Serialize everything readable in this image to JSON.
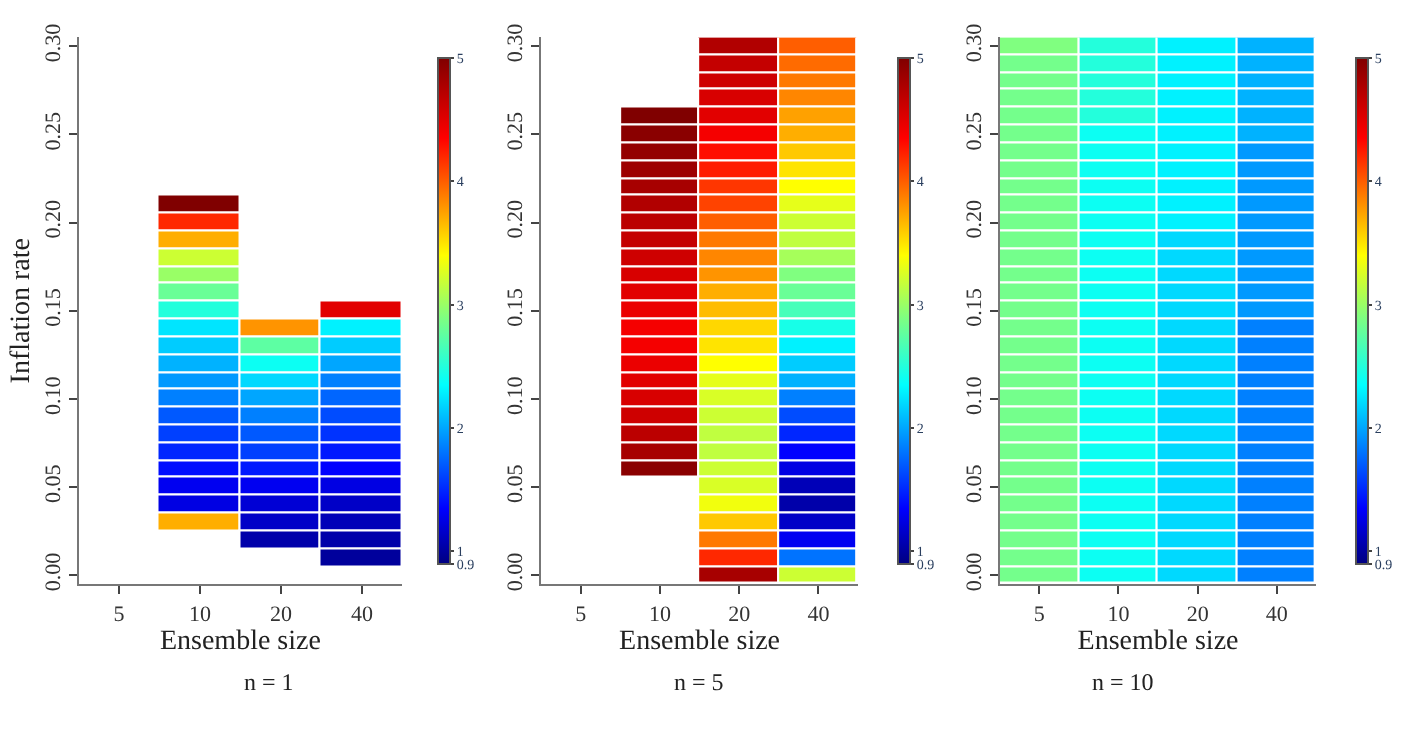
{
  "chart_data": [
    {
      "type": "heatmap",
      "xlabel": "Ensemble size",
      "ylabel": "Inflation rate",
      "annotations": [
        "n = 1"
      ],
      "categories": [
        "5",
        "10",
        "20",
        "40"
      ],
      "y": [
        0.21,
        0.2,
        0.19,
        0.18,
        0.17,
        0.16,
        0.15,
        0.14,
        0.13,
        0.12,
        0.11,
        0.1,
        0.09,
        0.08,
        0.07,
        0.06,
        0.05,
        0.04,
        0.03,
        0.02,
        0.01
      ],
      "ylim": [
        -0.005,
        0.305
      ],
      "yticks": [
        {
          "value": 0,
          "label": "0.00"
        },
        0.05,
        {
          "value": 0.1,
          "label": "0.10"
        },
        0.15,
        {
          "value": 0.2,
          "label": "0.20"
        },
        0.25,
        {
          "value": 0.3,
          "label": "0.30"
        }
      ],
      "clim": [
        0.9,
        5
      ],
      "cticks": [
        0.9,
        1,
        2,
        3,
        4,
        5
      ],
      "cells": [
        [
          null,
          5.0,
          null,
          null
        ],
        [
          null,
          4.2,
          null,
          null
        ],
        [
          null,
          3.7,
          null,
          null
        ],
        [
          null,
          3.2,
          null,
          null
        ],
        [
          null,
          3.0,
          null,
          null
        ],
        [
          null,
          2.8,
          null,
          null
        ],
        [
          null,
          2.5,
          null,
          4.5
        ],
        [
          null,
          2.25,
          3.8,
          2.3
        ],
        [
          null,
          2.15,
          2.75,
          2.15
        ],
        [
          null,
          2.05,
          2.4,
          2.0
        ],
        [
          null,
          1.95,
          2.2,
          1.85
        ],
        [
          null,
          1.85,
          2.0,
          1.75
        ],
        [
          null,
          1.7,
          1.85,
          1.65
        ],
        [
          null,
          1.6,
          1.7,
          1.55
        ],
        [
          null,
          1.5,
          1.6,
          1.45
        ],
        [
          null,
          1.4,
          1.45,
          1.35
        ],
        [
          null,
          1.3,
          1.3,
          1.25
        ],
        [
          null,
          1.25,
          1.2,
          1.15
        ],
        [
          null,
          3.7,
          1.15,
          1.1
        ],
        [
          null,
          null,
          1.05,
          1.05
        ],
        [
          null,
          null,
          null,
          1.0
        ]
      ]
    },
    {
      "type": "heatmap",
      "xlabel": "Ensemble size",
      "annotations": [
        "n = 5"
      ],
      "categories": [
        "5",
        "10",
        "20",
        "40"
      ],
      "y": [
        0.3,
        0.29,
        0.28,
        0.27,
        0.26,
        0.25,
        0.24,
        0.23,
        0.22,
        0.21,
        0.2,
        0.19,
        0.18,
        0.17,
        0.16,
        0.15,
        0.14,
        0.13,
        0.12,
        0.11,
        0.1,
        0.09,
        0.08,
        0.07,
        0.06,
        0.05,
        0.04,
        0.03,
        0.02,
        0.01,
        0.0
      ],
      "ylim": [
        -0.005,
        0.305
      ],
      "yticks": [
        {
          "value": 0,
          "label": "0.00"
        },
        0.05,
        {
          "value": 0.1,
          "label": "0.10"
        },
        0.15,
        {
          "value": 0.2,
          "label": "0.20"
        },
        0.25,
        {
          "value": 0.3,
          "label": "0.30"
        }
      ],
      "clim": [
        0.9,
        5
      ],
      "cticks": [
        0.9,
        1,
        2,
        3,
        4,
        5
      ],
      "cells": [
        [
          null,
          null,
          4.75,
          4.0
        ],
        [
          null,
          null,
          4.65,
          3.95
        ],
        [
          null,
          null,
          4.6,
          3.9
        ],
        [
          null,
          null,
          4.55,
          3.85
        ],
        [
          null,
          5.0,
          4.5,
          3.75
        ],
        [
          null,
          4.95,
          4.4,
          3.7
        ],
        [
          null,
          4.9,
          4.3,
          3.6
        ],
        [
          null,
          4.85,
          4.25,
          3.5
        ],
        [
          null,
          4.8,
          4.15,
          3.4
        ],
        [
          null,
          4.75,
          4.1,
          3.3
        ],
        [
          null,
          4.7,
          4.0,
          3.2
        ],
        [
          null,
          4.65,
          3.9,
          3.15
        ],
        [
          null,
          4.6,
          3.85,
          3.05
        ],
        [
          null,
          4.55,
          3.8,
          2.9
        ],
        [
          null,
          4.5,
          3.7,
          2.8
        ],
        [
          null,
          4.45,
          3.65,
          2.65
        ],
        [
          null,
          4.4,
          3.55,
          2.45
        ],
        [
          null,
          4.4,
          3.5,
          2.3
        ],
        [
          null,
          4.45,
          3.4,
          2.15
        ],
        [
          null,
          4.5,
          3.3,
          2.05
        ],
        [
          null,
          4.55,
          3.25,
          1.85
        ],
        [
          null,
          4.6,
          3.2,
          1.65
        ],
        [
          null,
          4.7,
          3.15,
          1.5
        ],
        [
          null,
          4.8,
          3.15,
          1.35
        ],
        [
          null,
          4.95,
          3.2,
          1.25
        ],
        [
          null,
          null,
          3.25,
          1.1
        ],
        [
          null,
          null,
          3.35,
          1.05
        ],
        [
          null,
          null,
          3.6,
          1.15
        ],
        [
          null,
          null,
          3.9,
          1.3
        ],
        [
          null,
          null,
          4.2,
          1.8
        ],
        [
          null,
          null,
          4.8,
          3.2
        ]
      ]
    },
    {
      "type": "heatmap",
      "xlabel": "Ensemble size",
      "annotations": [
        "n = 10"
      ],
      "categories": [
        "5",
        "10",
        "20",
        "40"
      ],
      "y": [
        0.3,
        0.29,
        0.28,
        0.27,
        0.26,
        0.25,
        0.24,
        0.23,
        0.22,
        0.21,
        0.2,
        0.19,
        0.18,
        0.17,
        0.16,
        0.15,
        0.14,
        0.13,
        0.12,
        0.11,
        0.1,
        0.09,
        0.08,
        0.07,
        0.06,
        0.05,
        0.04,
        0.03,
        0.02,
        0.01,
        0.0
      ],
      "ylim": [
        -0.005,
        0.305
      ],
      "yticks": [
        {
          "value": 0,
          "label": "0.00"
        },
        0.05,
        {
          "value": 0.1,
          "label": "0.10"
        },
        0.15,
        {
          "value": 0.2,
          "label": "0.20"
        },
        0.25,
        {
          "value": 0.3,
          "label": "0.30"
        }
      ],
      "clim": [
        0.9,
        5
      ],
      "cticks": [
        0.9,
        1,
        2,
        3,
        4,
        5
      ],
      "cells": [
        [
          2.9,
          2.5,
          2.3,
          2.05
        ],
        [
          2.85,
          2.5,
          2.3,
          2.05
        ],
        [
          2.85,
          2.5,
          2.3,
          2.05
        ],
        [
          2.85,
          2.5,
          2.3,
          2.05
        ],
        [
          2.85,
          2.5,
          2.3,
          2.05
        ],
        [
          2.85,
          2.4,
          2.3,
          2.05
        ],
        [
          2.85,
          2.4,
          2.3,
          1.95
        ],
        [
          2.85,
          2.4,
          2.3,
          1.95
        ],
        [
          2.85,
          2.4,
          2.3,
          1.95
        ],
        [
          2.85,
          2.4,
          2.3,
          1.95
        ],
        [
          2.85,
          2.4,
          2.3,
          1.95
        ],
        [
          2.85,
          2.4,
          2.2,
          1.95
        ],
        [
          2.85,
          2.4,
          2.2,
          1.95
        ],
        [
          2.85,
          2.4,
          2.2,
          1.95
        ],
        [
          2.85,
          2.4,
          2.2,
          1.95
        ],
        [
          2.85,
          2.4,
          2.2,
          1.95
        ],
        [
          2.85,
          2.4,
          2.2,
          1.85
        ],
        [
          2.85,
          2.4,
          2.2,
          1.85
        ],
        [
          2.85,
          2.4,
          2.2,
          1.85
        ],
        [
          2.85,
          2.4,
          2.2,
          1.85
        ],
        [
          2.85,
          2.4,
          2.2,
          1.85
        ],
        [
          2.85,
          2.4,
          2.2,
          1.85
        ],
        [
          2.85,
          2.4,
          2.2,
          1.85
        ],
        [
          2.85,
          2.4,
          2.2,
          1.85
        ],
        [
          2.85,
          2.4,
          2.2,
          1.85
        ],
        [
          2.85,
          2.4,
          2.2,
          1.85
        ],
        [
          2.85,
          2.4,
          2.2,
          1.85
        ],
        [
          2.85,
          2.4,
          2.2,
          1.85
        ],
        [
          2.85,
          2.4,
          2.2,
          1.85
        ],
        [
          2.85,
          2.4,
          2.2,
          1.85
        ],
        [
          2.85,
          2.4,
          2.2,
          1.85
        ]
      ]
    }
  ]
}
